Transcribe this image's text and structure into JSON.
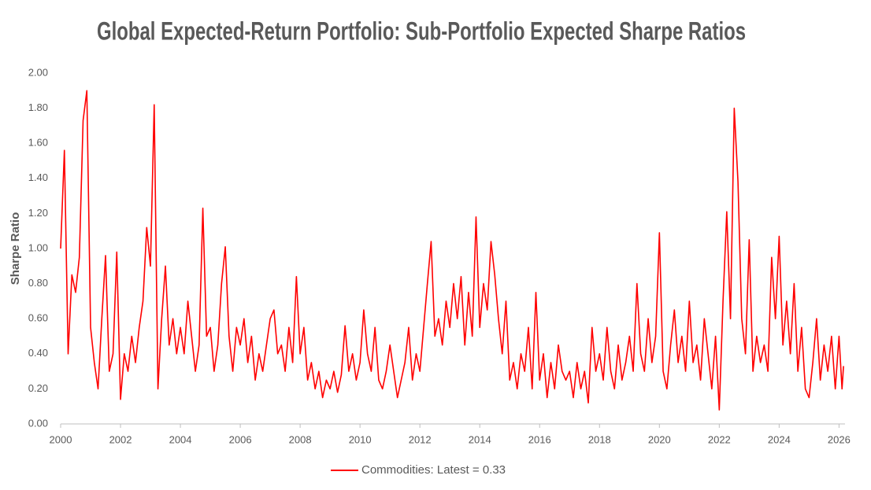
{
  "chart_data": {
    "type": "line",
    "title": "Global Expected-Return Portfolio: Sub-Portfolio Expected Sharpe Ratios",
    "y_label": "Sharpe Ratio",
    "legend": "bottom",
    "grid": false,
    "xlim": [
      2000,
      2026.2
    ],
    "xticks": [
      2000,
      2002,
      2004,
      2006,
      2008,
      2010,
      2012,
      2014,
      2016,
      2018,
      2020,
      2022,
      2024,
      2026
    ],
    "ylim": [
      0,
      2
    ],
    "yticks": [
      {
        "value": 0,
        "label": "0.00"
      },
      {
        "value": 0.2,
        "label": "0.20"
      },
      {
        "value": 0.4,
        "label": "0.40"
      },
      {
        "value": 0.6,
        "label": "0.60"
      },
      {
        "value": 0.8,
        "label": "0.80"
      },
      {
        "value": 1,
        "label": "1.00"
      },
      {
        "value": 1.2,
        "label": "1.20"
      },
      {
        "value": 1.4,
        "label": "1.40"
      },
      {
        "value": 1.6,
        "label": "1.60"
      },
      {
        "value": 1.8,
        "label": "1.80"
      },
      {
        "value": 2,
        "label": "2.00"
      }
    ],
    "x": [
      2000,
      2000.125,
      2000.25,
      2000.375,
      2000.5,
      2000.625,
      2000.75,
      2000.875,
      2001,
      2001.125,
      2001.25,
      2001.375,
      2001.5,
      2001.625,
      2001.75,
      2001.875,
      2002,
      2002.125,
      2002.25,
      2002.375,
      2002.5,
      2002.625,
      2002.75,
      2002.875,
      2003,
      2003.125,
      2003.25,
      2003.375,
      2003.5,
      2003.625,
      2003.75,
      2003.875,
      2004,
      2004.125,
      2004.25,
      2004.375,
      2004.5,
      2004.625,
      2004.75,
      2004.875,
      2005,
      2005.125,
      2005.25,
      2005.375,
      2005.5,
      2005.625,
      2005.75,
      2005.875,
      2006,
      2006.125,
      2006.25,
      2006.375,
      2006.5,
      2006.625,
      2006.75,
      2006.875,
      2007,
      2007.125,
      2007.25,
      2007.375,
      2007.5,
      2007.625,
      2007.75,
      2007.875,
      2008,
      2008.125,
      2008.25,
      2008.375,
      2008.5,
      2008.625,
      2008.75,
      2008.875,
      2009,
      2009.125,
      2009.25,
      2009.375,
      2009.5,
      2009.625,
      2009.75,
      2009.875,
      2010,
      2010.125,
      2010.25,
      2010.375,
      2010.5,
      2010.625,
      2010.75,
      2010.875,
      2011,
      2011.125,
      2011.25,
      2011.375,
      2011.5,
      2011.625,
      2011.75,
      2011.875,
      2012,
      2012.125,
      2012.25,
      2012.375,
      2012.5,
      2012.625,
      2012.75,
      2012.875,
      2013,
      2013.125,
      2013.25,
      2013.375,
      2013.5,
      2013.625,
      2013.75,
      2013.875,
      2014,
      2014.125,
      2014.25,
      2014.375,
      2014.5,
      2014.625,
      2014.75,
      2014.875,
      2015,
      2015.125,
      2015.25,
      2015.375,
      2015.5,
      2015.625,
      2015.75,
      2015.875,
      2016,
      2016.125,
      2016.25,
      2016.375,
      2016.5,
      2016.625,
      2016.75,
      2016.875,
      2017,
      2017.125,
      2017.25,
      2017.375,
      2017.5,
      2017.625,
      2017.75,
      2017.875,
      2018,
      2018.125,
      2018.25,
      2018.375,
      2018.5,
      2018.625,
      2018.75,
      2018.875,
      2019,
      2019.125,
      2019.25,
      2019.375,
      2019.5,
      2019.625,
      2019.75,
      2019.875,
      2020,
      2020.125,
      2020.25,
      2020.375,
      2020.5,
      2020.625,
      2020.75,
      2020.875,
      2021,
      2021.125,
      2021.25,
      2021.375,
      2021.5,
      2021.625,
      2021.75,
      2021.875,
      2022,
      2022.125,
      2022.25,
      2022.375,
      2022.5,
      2022.625,
      2022.75,
      2022.875,
      2023,
      2023.125,
      2023.25,
      2023.375,
      2023.5,
      2023.625,
      2023.75,
      2023.875,
      2024,
      2024.125,
      2024.25,
      2024.375,
      2024.5,
      2024.625,
      2024.75,
      2024.875,
      2025,
      2025.125,
      2025.25,
      2025.375,
      2025.5,
      2025.625,
      2025.75,
      2025.875,
      2026,
      2026.1,
      2026.15
    ],
    "series": [
      {
        "name": "Commodities: Latest = 0.33",
        "color": "#ff0000",
        "values": [
          1.0,
          1.56,
          0.4,
          0.85,
          0.75,
          0.95,
          1.73,
          1.9,
          0.55,
          0.35,
          0.2,
          0.6,
          0.96,
          0.3,
          0.4,
          0.98,
          0.14,
          0.4,
          0.3,
          0.5,
          0.35,
          0.55,
          0.7,
          1.12,
          0.9,
          1.82,
          0.2,
          0.6,
          0.9,
          0.45,
          0.6,
          0.4,
          0.55,
          0.4,
          0.7,
          0.5,
          0.3,
          0.45,
          1.23,
          0.5,
          0.55,
          0.3,
          0.45,
          0.8,
          1.01,
          0.5,
          0.3,
          0.55,
          0.45,
          0.6,
          0.35,
          0.5,
          0.25,
          0.4,
          0.3,
          0.45,
          0.6,
          0.65,
          0.4,
          0.45,
          0.3,
          0.55,
          0.35,
          0.84,
          0.4,
          0.55,
          0.25,
          0.35,
          0.2,
          0.3,
          0.15,
          0.25,
          0.2,
          0.3,
          0.18,
          0.28,
          0.56,
          0.3,
          0.4,
          0.25,
          0.35,
          0.65,
          0.4,
          0.3,
          0.55,
          0.25,
          0.2,
          0.3,
          0.45,
          0.3,
          0.15,
          0.25,
          0.35,
          0.55,
          0.25,
          0.4,
          0.3,
          0.55,
          0.8,
          1.04,
          0.5,
          0.6,
          0.45,
          0.7,
          0.55,
          0.8,
          0.6,
          0.84,
          0.45,
          0.75,
          0.5,
          1.18,
          0.55,
          0.8,
          0.65,
          1.04,
          0.85,
          0.6,
          0.4,
          0.7,
          0.25,
          0.35,
          0.2,
          0.4,
          0.3,
          0.55,
          0.2,
          0.75,
          0.25,
          0.4,
          0.15,
          0.35,
          0.2,
          0.45,
          0.3,
          0.25,
          0.3,
          0.15,
          0.35,
          0.2,
          0.3,
          0.12,
          0.55,
          0.3,
          0.4,
          0.25,
          0.55,
          0.3,
          0.2,
          0.45,
          0.25,
          0.35,
          0.5,
          0.3,
          0.8,
          0.4,
          0.3,
          0.6,
          0.35,
          0.5,
          1.09,
          0.3,
          0.2,
          0.45,
          0.65,
          0.35,
          0.5,
          0.3,
          0.7,
          0.35,
          0.45,
          0.25,
          0.6,
          0.4,
          0.2,
          0.5,
          0.08,
          0.7,
          1.21,
          0.6,
          1.8,
          1.38,
          0.6,
          0.4,
          1.05,
          0.3,
          0.5,
          0.35,
          0.45,
          0.3,
          0.95,
          0.6,
          1.07,
          0.45,
          0.7,
          0.4,
          0.8,
          0.3,
          0.55,
          0.2,
          0.15,
          0.35,
          0.6,
          0.25,
          0.45,
          0.3,
          0.5,
          0.2,
          0.5,
          0.2,
          0.33
        ]
      }
    ]
  }
}
